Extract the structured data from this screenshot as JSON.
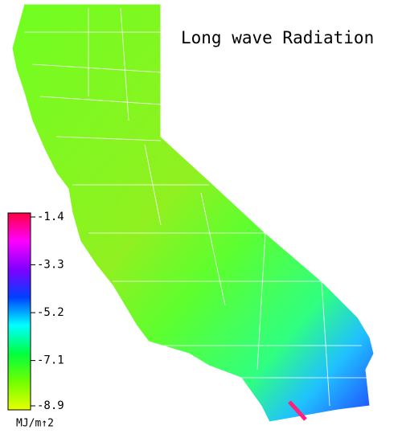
{
  "title": "Long wave Radiation",
  "colorbar": {
    "unit": "MJ/m↑2",
    "range": [
      -8.9,
      -1.4
    ],
    "ticks": [
      -1.4,
      -3.3,
      -5.2,
      -7.1,
      -8.9
    ],
    "colors": [
      "#e8ff00",
      "#70ff00",
      "#00ff40",
      "#00ffff",
      "#0040ff",
      "#8000ff",
      "#ff00ff",
      "#ff0040"
    ]
  }
}
